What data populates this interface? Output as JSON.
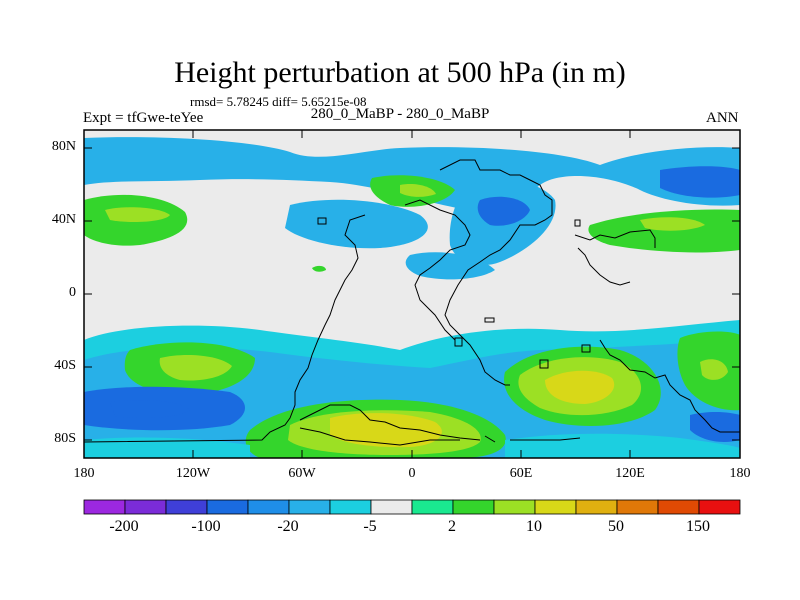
{
  "header": {
    "title": "Height perturbation at 500 hPa (in m)",
    "stats": "rmsd= 5.78245 diff= 5.65215e-08",
    "expt": "Expt = tfGwe-teYee",
    "subtitle": "280_0_MaBP - 280_0_MaBP",
    "season": "ANN"
  },
  "axes": {
    "y_ticks": [
      "80N",
      "40N",
      "0",
      "40S",
      "80S"
    ],
    "x_ticks": [
      "180",
      "120W",
      "60W",
      "0",
      "60E",
      "120E",
      "180"
    ]
  },
  "colorbar": {
    "colors": [
      "#9c28e0",
      "#7b2cd8",
      "#3f3fd8",
      "#1a6be0",
      "#1f8ee8",
      "#28b0e8",
      "#1ccfe0",
      "#ebebeb",
      "#1ae890",
      "#34d52c",
      "#9ce024",
      "#d8d818",
      "#e0b010",
      "#e07808",
      "#e04a04",
      "#e81010"
    ],
    "labels": [
      "-200",
      "-100",
      "-20",
      "-5",
      "2",
      "10",
      "50",
      "150"
    ],
    "level_colors": {
      "light_blue": "#28b0e8",
      "blue": "#1a6be0",
      "cyan": "#1ccfe0",
      "green": "#34d52c",
      "yellow_green": "#9ce024",
      "yellow": "#d8d818",
      "neutral": "#ebebeb"
    }
  }
}
